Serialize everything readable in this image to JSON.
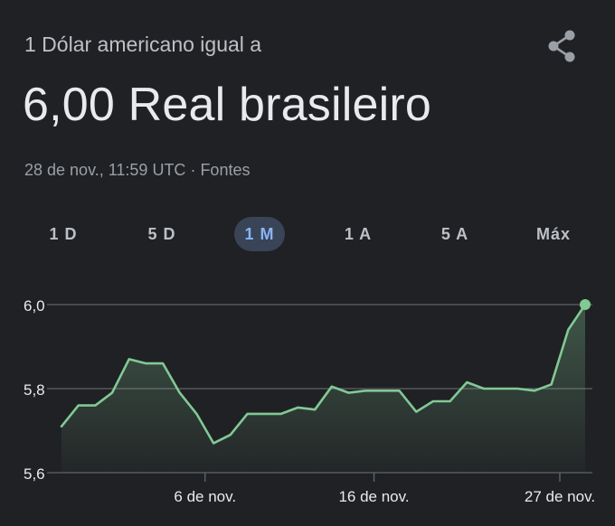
{
  "header": {
    "subtitle": "1 Dólar americano igual a",
    "result": "6,00 Real brasileiro",
    "timestamp": "28 de nov., 11:59 UTC",
    "separator": "·",
    "sources_label": "Fontes",
    "share_icon": "share-icon"
  },
  "tabs": [
    {
      "label": "1 D",
      "active": false
    },
    {
      "label": "5 D",
      "active": false
    },
    {
      "label": "1 M",
      "active": true
    },
    {
      "label": "1 A",
      "active": false
    },
    {
      "label": "5 A",
      "active": false
    },
    {
      "label": "Máx",
      "active": false
    }
  ],
  "colors": {
    "background": "#202124",
    "line": "#81c995",
    "active_tab_bg": "#394457",
    "active_tab_text": "#8ab4f8",
    "grid": "#5f6368",
    "text": "#e8eaed",
    "muted": "#9aa0a6"
  },
  "chart_data": {
    "type": "area",
    "title": "",
    "xlabel": "",
    "ylabel": "",
    "ylim": [
      5.6,
      6.0
    ],
    "y_ticks": [
      5.6,
      5.8,
      6.0
    ],
    "y_tick_labels": [
      "5,6",
      "5,8",
      "6,0"
    ],
    "x_tick_labels": [
      "6 de nov.",
      "16 de nov.",
      "27 de nov."
    ],
    "x_tick_index": [
      8.5,
      18.5,
      29.5
    ],
    "grid": true,
    "values": [
      5.71,
      5.76,
      5.76,
      5.79,
      5.87,
      5.86,
      5.86,
      5.79,
      5.74,
      5.67,
      5.69,
      5.74,
      5.74,
      5.74,
      5.755,
      5.75,
      5.805,
      5.79,
      5.795,
      5.795,
      5.795,
      5.745,
      5.77,
      5.77,
      5.815,
      5.8,
      5.8,
      5.8,
      5.795,
      5.81,
      5.94,
      6.0
    ]
  }
}
